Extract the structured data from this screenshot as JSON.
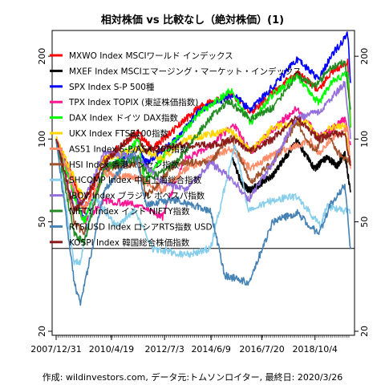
{
  "title": "相対株価 vs 比較なし（絶対株価）(1)",
  "footer": "作成: wildinvestors.com, データ元:トムソンロイター, 最終日: 2020/3/26",
  "chart_data": {
    "type": "line",
    "title": "相対株価 vs 比較なし（絶対株価）(1)",
    "xlabel": "",
    "ylabel": "",
    "log_y": true,
    "ylim": [
      20,
      240
    ],
    "xlim": [
      "2007/12/31",
      "2020/3/26"
    ],
    "grid": false,
    "legend_position": "top-left",
    "reference_line": 40,
    "y_ticks": [
      20,
      50,
      100,
      200
    ],
    "x_ticks": [
      "2007/12/31",
      "2010/4/19",
      "2012/7/3",
      "2014/6/9",
      "2016/7/20",
      "2018/10/4"
    ],
    "series": [
      {
        "name": "MXWO Index MSCIワールド インデックス",
        "color": "#ff0000",
        "x": [
          "2007/12/31",
          "2008/10/1",
          "2009/3/1",
          "2010/1/1",
          "2011/6/1",
          "2012/1/1",
          "2013/1/1",
          "2014/1/1",
          "2015/5/1",
          "2016/2/1",
          "2017/1/1",
          "2018/1/1",
          "2018/12/1",
          "2019/6/1",
          "2020/2/15",
          "2020/3/26"
        ],
        "values": [
          100,
          70,
          55,
          85,
          105,
          92,
          110,
          132,
          145,
          125,
          148,
          175,
          150,
          175,
          190,
          110
        ]
      },
      {
        "name": "MXEF Index MSCIエマージング・マーケット・インデックス",
        "color": "#000000",
        "x": [
          "2015/5/1",
          "2015/9/1",
          "2016/1/1",
          "2016/6/1",
          "2017/1/1",
          "2018/1/1",
          "2018/10/1",
          "2019/4/1",
          "2019/9/1",
          "2020/1/1",
          "2020/3/26"
        ],
        "values": [
          85,
          70,
          65,
          68,
          74,
          98,
          78,
          86,
          80,
          88,
          64
        ]
      },
      {
        "name": "SPX Index S-P 500種",
        "color": "#0000ff",
        "x": [
          "2007/12/31",
          "2008/10/1",
          "2009/3/1",
          "2010/1/1",
          "2011/6/1",
          "2011/10/1",
          "2013/1/1",
          "2014/1/1",
          "2015/5/1",
          "2016/2/1",
          "2017/1/1",
          "2018/1/1",
          "2018/12/1",
          "2019/6/1",
          "2020/2/15",
          "2020/3/26"
        ],
        "values": [
          100,
          65,
          50,
          78,
          92,
          82,
          100,
          128,
          145,
          128,
          155,
          195,
          165,
          200,
          240,
          160
        ]
      },
      {
        "name": "TPX Index TOPIX (東証株価指数)",
        "color": "#ff1493",
        "x": [
          "2007/12/31",
          "2008/10/1",
          "2009/3/1",
          "2010/1/1",
          "2011/3/1",
          "2012/6/1",
          "2013/5/1",
          "2014/1/1",
          "2015/6/1",
          "2016/2/1",
          "2017/1/1",
          "2018/1/1",
          "2018/12/1",
          "2019/6/1",
          "2020/1/1",
          "2020/3/26"
        ],
        "values": [
          100,
          62,
          50,
          60,
          58,
          52,
          85,
          90,
          112,
          90,
          108,
          130,
          102,
          108,
          118,
          95
        ]
      },
      {
        "name": "DAX Index ドイツ DAX指数",
        "color": "#00ff00",
        "x": [
          "2007/12/31",
          "2008/10/1",
          "2009/3/1",
          "2010/1/1",
          "2011/6/1",
          "2011/9/1",
          "2013/1/1",
          "2014/1/1",
          "2015/4/1",
          "2016/2/1",
          "2017/1/1",
          "2018/1/1",
          "2018/12/1",
          "2019/6/1",
          "2020/2/15",
          "2020/3/26"
        ],
        "values": [
          100,
          62,
          50,
          75,
          100,
          70,
          100,
          125,
          150,
          115,
          145,
          170,
          135,
          160,
          175,
          110
        ]
      },
      {
        "name": "UKX Index FTSE100指数",
        "color": "#ffd700",
        "x": [
          "2007/12/31",
          "2008/10/1",
          "2009/3/1",
          "2010/1/1",
          "2011/6/1",
          "2012/6/1",
          "2013/6/1",
          "2014/6/1",
          "2015/4/1",
          "2016/2/1",
          "2017/1/1",
          "2018/5/1",
          "2018/12/1",
          "2019/6/1",
          "2020/1/1",
          "2020/3/26"
        ],
        "values": [
          100,
          72,
          60,
          85,
          92,
          85,
          100,
          104,
          108,
          90,
          110,
          116,
          102,
          110,
          112,
          80
        ]
      },
      {
        "name": "AS51 Index S-P/ASX 200指数",
        "color": "#ff8c69",
        "x": [
          "2007/12/31",
          "2008/10/1",
          "2009/3/1",
          "2010/1/1",
          "2011/6/1",
          "2012/6/1",
          "2013/6/1",
          "2014/6/1",
          "2015/4/1",
          "2016/2/1",
          "2017/1/1",
          "2018/8/1",
          "2018/12/1",
          "2019/6/1",
          "2020/2/15",
          "2020/3/26"
        ],
        "values": [
          100,
          65,
          55,
          75,
          72,
          65,
          78,
          85,
          92,
          78,
          88,
          98,
          88,
          100,
          110,
          78
        ]
      },
      {
        "name": "HSI Index 香港ハンセン指数",
        "color": "#a0522d",
        "x": [
          "2007/12/31",
          "2008/10/1",
          "2009/3/1",
          "2010/1/1",
          "2011/6/1",
          "2011/10/1",
          "2013/1/1",
          "2014/6/1",
          "2015/4/1",
          "2016/2/1",
          "2017/1/1",
          "2018/1/1",
          "2018/10/1",
          "2019/4/1",
          "2019/9/1",
          "2020/3/26"
        ],
        "values": [
          100,
          50,
          45,
          78,
          82,
          62,
          82,
          82,
          102,
          70,
          82,
          115,
          90,
          105,
          90,
          82
        ]
      },
      {
        "name": "SHCOMP Index 中国上海総合指数",
        "color": "#87ceeb",
        "x": [
          "2007/12/31",
          "2008/10/1",
          "2009/1/1",
          "2009/8/1",
          "2010/7/1",
          "2011/4/1",
          "2012/1/1",
          "2013/6/1",
          "2014/6/1",
          "2015/6/1",
          "2016/1/1",
          "2017/1/1",
          "2018/1/1",
          "2019/1/1",
          "2019/4/1",
          "2020/3/26"
        ],
        "values": [
          100,
          35,
          36,
          62,
          48,
          55,
          40,
          38,
          40,
          95,
          55,
          60,
          62,
          48,
          57,
          54
        ]
      },
      {
        "name": "IBOV Index ブラジル ボベスパ指数",
        "color": "#9370db",
        "x": [
          "2007/12/31",
          "2008/10/1",
          "2009/3/1",
          "2010/1/1",
          "2011/6/1",
          "2012/6/1",
          "2013/6/1",
          "2014/6/1",
          "2015/6/1",
          "2016/1/1",
          "2017/1/1",
          "2018/1/1",
          "2018/12/1",
          "2019/6/1",
          "2020/1/1",
          "2020/3/26"
        ],
        "values": [
          100,
          55,
          60,
          90,
          85,
          70,
          65,
          82,
          70,
          60,
          82,
          120,
          125,
          140,
          160,
          100
        ]
      },
      {
        "name": "NIFTY Index インド NIFTY指数",
        "color": "#228b22",
        "x": [
          "2007/12/31",
          "2008/10/1",
          "2009/3/1",
          "2010/1/1",
          "2011/6/1",
          "2011/12/1",
          "2013/1/1",
          "2014/6/1",
          "2015/3/1",
          "2016/2/1",
          "2017/1/1",
          "2018/1/1",
          "2018/10/1",
          "2019/6/1",
          "2020/1/1",
          "2020/3/26"
        ],
        "values": [
          100,
          45,
          42,
          80,
          85,
          72,
          82,
          120,
          138,
          118,
          130,
          170,
          155,
          182,
          190,
          128
        ]
      },
      {
        "name": "RTSIUSD Index ロシアRTS指数 USD",
        "color": "#4682b4",
        "x": [
          "2007/12/31",
          "2008/10/1",
          "2009/1/1",
          "2010/1/1",
          "2011/4/1",
          "2011/10/1",
          "2013/1/1",
          "2014/6/1",
          "2015/1/1",
          "2016/1/1",
          "2017/1/1",
          "2018/1/1",
          "2018/12/1",
          "2019/6/1",
          "2020/1/1",
          "2020/3/26"
        ],
        "values": [
          100,
          30,
          25,
          65,
          90,
          58,
          60,
          55,
          32,
          30,
          50,
          54,
          45,
          58,
          68,
          40
        ]
      },
      {
        "name": "KOSPI Index 韓国総合株価指数",
        "color": "#8b1a1a",
        "x": [
          "2007/12/31",
          "2008/10/1",
          "2009/3/1",
          "2010/1/1",
          "2011/4/1",
          "2011/10/1",
          "2013/1/1",
          "2014/6/1",
          "2015/6/1",
          "2016/1/1",
          "2017/1/1",
          "2018/1/1",
          "2018/12/1",
          "2019/6/1",
          "2020/1/1",
          "2020/3/26"
        ],
        "values": [
          100,
          55,
          60,
          82,
          105,
          90,
          95,
          95,
          100,
          90,
          100,
          120,
          100,
          104,
          104,
          80
        ]
      }
    ]
  }
}
